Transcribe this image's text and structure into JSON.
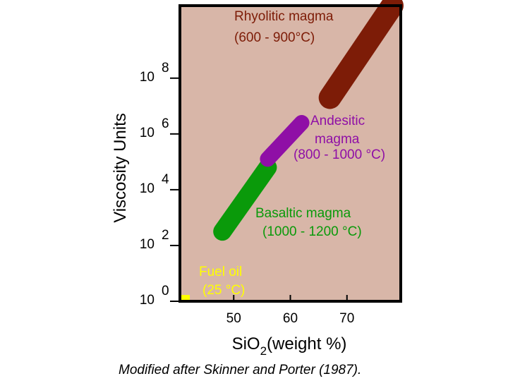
{
  "chart_data": {
    "type": "scatter",
    "title": "",
    "xlabel": "SiO2(weight %)",
    "xlabel_main": "SiO",
    "xlabel_sub": "2",
    "xlabel_rest": "(weight %)",
    "ylabel": "Viscosity Units",
    "xlim": [
      40.5,
      79.5
    ],
    "ylim": [
      0,
      10.6
    ],
    "x_ticks": [
      50,
      60,
      70
    ],
    "x_tick_labels": [
      "50",
      "60",
      "70"
    ],
    "y_ticks": [
      {
        "value": 0,
        "base": "10",
        "exp": "0"
      },
      {
        "value": 2,
        "base": "10",
        "exp": "2"
      },
      {
        "value": 4,
        "base": "10",
        "exp": "4"
      },
      {
        "value": 6,
        "base": "10",
        "exp": "6"
      },
      {
        "value": 8,
        "base": "10",
        "exp": "8"
      }
    ],
    "grid": false,
    "series": [
      {
        "name": "Basaltic magma",
        "temperature": "(1000 - 1200 °C)",
        "color": "#0a9a0a",
        "sio2_range": [
          48,
          56
        ],
        "log_viscosity_range": [
          2.5,
          4.8
        ]
      },
      {
        "name": "Andesitic magma",
        "name_line1": "Andesitic",
        "name_line2": "magma",
        "temperature": "(800 - 1000 °C)",
        "color": "#8f0fa6",
        "sio2_range": [
          56,
          62
        ],
        "log_viscosity_range": [
          5.1,
          6.4
        ]
      },
      {
        "name": "Rhyolitic magma",
        "temperature": "(600 - 900°C)",
        "color": "#7d1c07",
        "sio2_range": [
          67,
          78
        ],
        "log_viscosity_range": [
          7.3,
          10.6
        ]
      },
      {
        "name": "Fuel oil",
        "temperature": "(25 °C)",
        "color": "#ffff00",
        "text_color": "#ffff00",
        "sio2_range": [
          41.5,
          41.5
        ],
        "log_viscosity_range": [
          0.1,
          0.1
        ]
      }
    ],
    "colors": {
      "plot_background": "#d8b6a8",
      "axis": "#000000",
      "label_text": "#000000"
    }
  },
  "credit": "Modified after Skinner and Porter (1987)."
}
